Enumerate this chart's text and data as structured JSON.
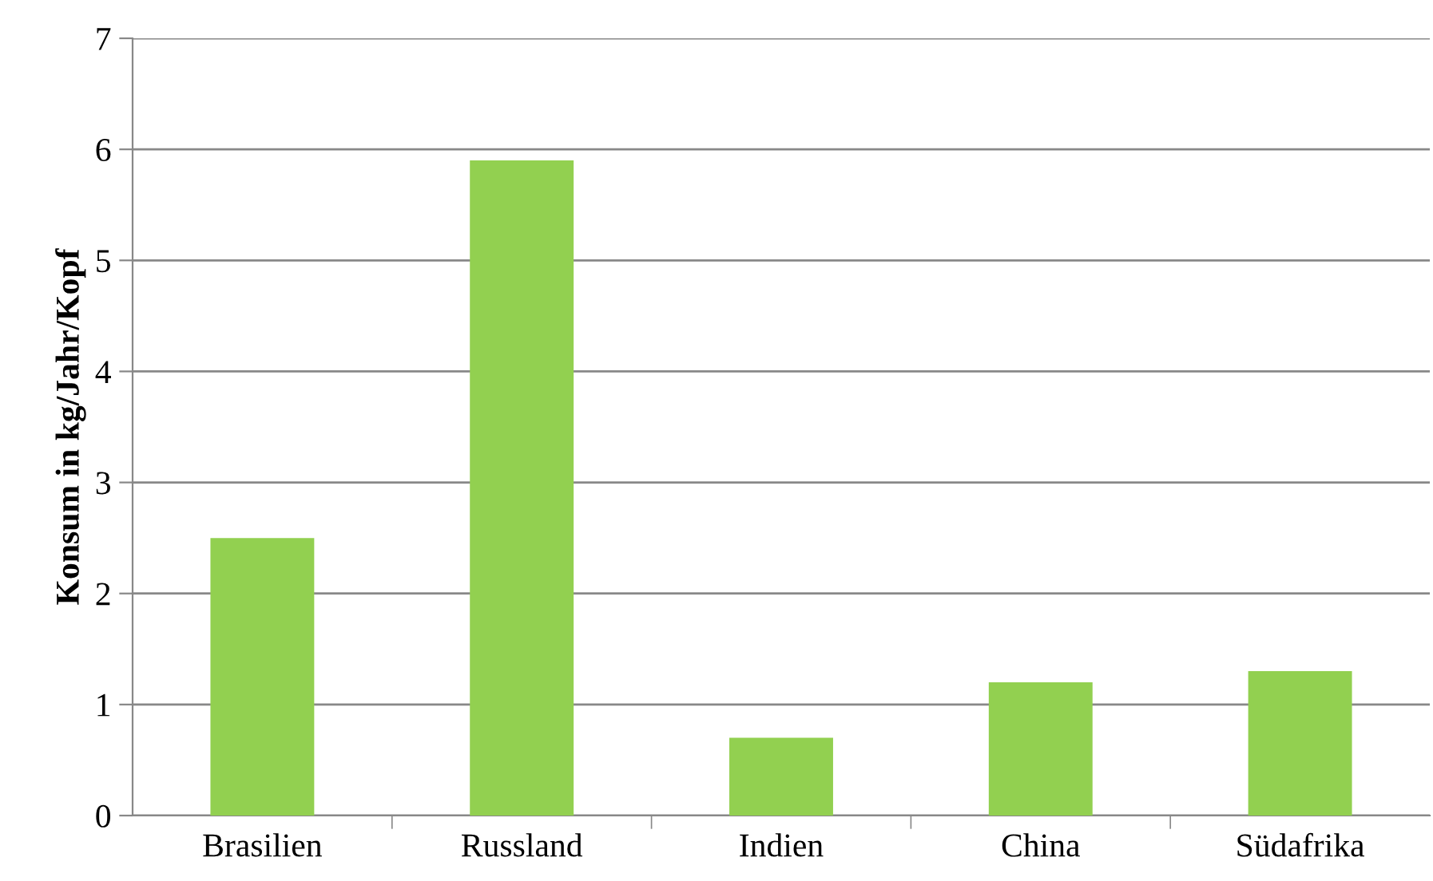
{
  "chart_data": {
    "type": "bar",
    "ylabel": "Konsum in kg/Jahr/Kopf",
    "categories": [
      "Brasilien",
      "Russland",
      "Indien",
      "China",
      "Südafrika"
    ],
    "values": [
      2.5,
      5.9,
      0.7,
      1.2,
      1.3
    ],
    "color": "#92d050",
    "ylim": [
      0,
      7
    ],
    "yticks": [
      0,
      1,
      2,
      3,
      4,
      5,
      6,
      7
    ],
    "grid": "y"
  }
}
